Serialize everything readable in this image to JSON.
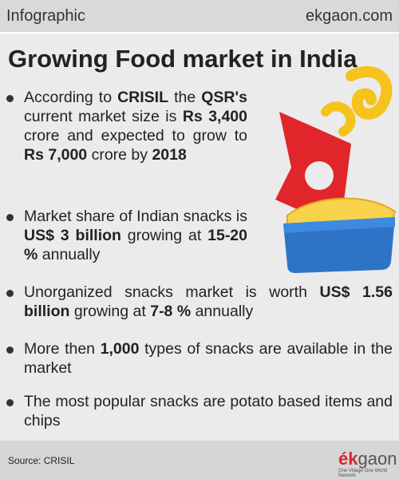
{
  "header": {
    "label": "Infographic",
    "site": "ekgaon.com"
  },
  "title": "Growing Food market in India",
  "bullets": [
    {
      "parts": [
        {
          "text": "According to "
        },
        {
          "text": "CRISIL",
          "bold": true
        },
        {
          "text": " the "
        },
        {
          "text": "QSR's",
          "bold": true
        },
        {
          "text": " current market size is "
        },
        {
          "text": "Rs 3,400",
          "bold": true
        },
        {
          "text": " crore and expected to grow to "
        },
        {
          "text": "Rs 7,000",
          "bold": true
        },
        {
          "text": " crore by "
        },
        {
          "text": "2018",
          "bold": true
        }
      ]
    },
    {
      "parts": [
        {
          "text": "Market share of Indian snacks is "
        },
        {
          "text": "US$ 3 billion",
          "bold": true
        },
        {
          "text": " growing at "
        },
        {
          "text": "15-20 %",
          "bold": true
        },
        {
          "text": " annually"
        }
      ]
    },
    {
      "parts": [
        {
          "text": "Unorganized snacks market is worth "
        },
        {
          "text": "US$ 1.56 billion",
          "bold": true
        },
        {
          "text": " growing at "
        },
        {
          "text": "7-8 %",
          "bold": true
        },
        {
          "text": " annually"
        }
      ]
    },
    {
      "parts": [
        {
          "text": "More then "
        },
        {
          "text": "1,000",
          "bold": true
        },
        {
          "text": " types of snacks are available in the market"
        }
      ]
    },
    {
      "parts": [
        {
          "text": "The most popular snacks are potato based items and chips"
        }
      ]
    }
  ],
  "footer": {
    "source": "Source: CRISIL",
    "logo_accent": "ék",
    "logo_rest": "gaon",
    "tagline": "One Village One World Network"
  }
}
